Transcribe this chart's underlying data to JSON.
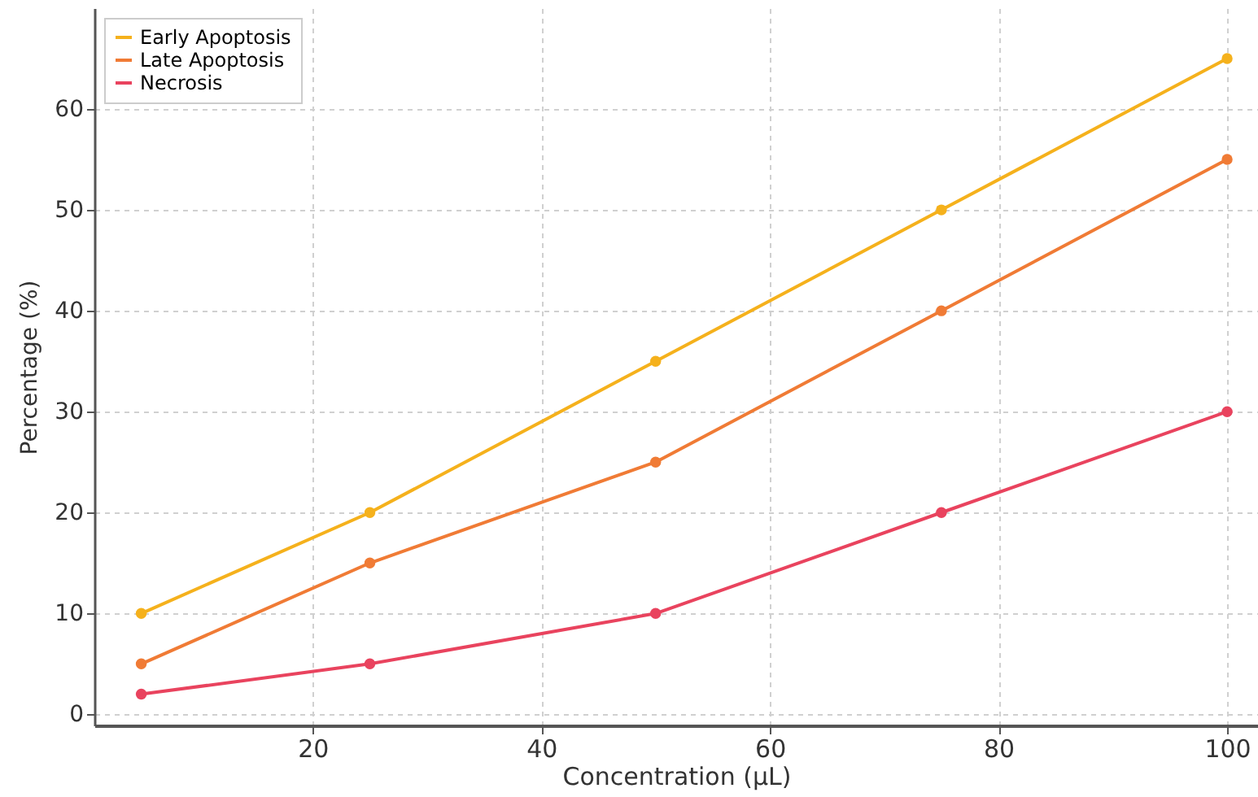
{
  "chart_data": {
    "type": "line",
    "xlabel": "Concentration (µL)",
    "ylabel": "Percentage (%)",
    "x": [
      5,
      25,
      50,
      75,
      100
    ],
    "series": [
      {
        "name": "Early Apoptosis",
        "color": "#f5b11c",
        "values": [
          10,
          20,
          35,
          50,
          65
        ]
      },
      {
        "name": "Late Apoptosis",
        "color": "#f07b35",
        "values": [
          5,
          15,
          25,
          40,
          55
        ]
      },
      {
        "name": "Necrosis",
        "color": "#e9435e",
        "values": [
          2,
          5,
          10,
          20,
          30
        ]
      }
    ],
    "xlim": [
      0.9,
      102.7
    ],
    "xticks": [
      20,
      40,
      60,
      80,
      100
    ],
    "ylim": [
      -1.1,
      70
    ],
    "yticks": [
      0,
      10,
      20,
      30,
      40,
      50,
      60
    ],
    "grid": true,
    "legend": "top left",
    "marker": "circle",
    "line_style": "solid"
  }
}
